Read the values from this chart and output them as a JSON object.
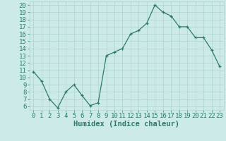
{
  "x": [
    0,
    1,
    2,
    3,
    4,
    5,
    6,
    7,
    8,
    9,
    10,
    11,
    12,
    13,
    14,
    15,
    16,
    17,
    18,
    19,
    20,
    21,
    22,
    23
  ],
  "y": [
    10.8,
    9.5,
    7.0,
    5.8,
    8.0,
    9.0,
    7.5,
    6.1,
    6.5,
    13.0,
    13.5,
    14.0,
    16.0,
    16.5,
    17.5,
    20.0,
    19.0,
    18.5,
    17.0,
    17.0,
    15.5,
    15.5,
    13.8,
    11.5
  ],
  "xlabel": "Humidex (Indice chaleur)",
  "xlim": [
    -0.5,
    23.5
  ],
  "ylim": [
    5.5,
    20.5
  ],
  "yticks": [
    6,
    7,
    8,
    9,
    10,
    11,
    12,
    13,
    14,
    15,
    16,
    17,
    18,
    19,
    20
  ],
  "xticks": [
    0,
    1,
    2,
    3,
    4,
    5,
    6,
    7,
    8,
    9,
    10,
    11,
    12,
    13,
    14,
    15,
    16,
    17,
    18,
    19,
    20,
    21,
    22,
    23
  ],
  "line_color": "#2d7a6b",
  "marker": "+",
  "bg_color": "#cceae8",
  "grid_color": "#aed4d0",
  "tick_label_color": "#2d7a6b",
  "axis_label_color": "#2d7a6b",
  "xlabel_fontsize": 7.5,
  "tick_fontsize": 6.5
}
